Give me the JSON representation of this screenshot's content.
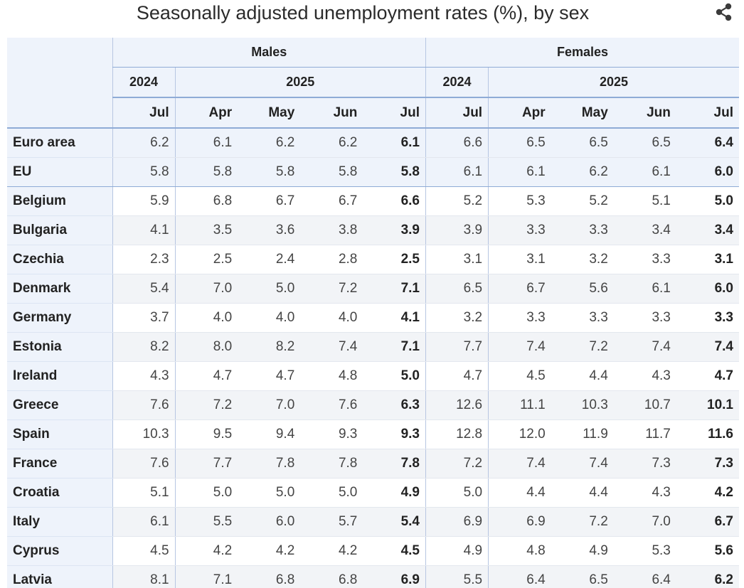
{
  "title": "Seasonally adjusted unemployment rates (%), by sex",
  "share_icon": "share-icon",
  "colors": {
    "header_bg": "#eef3fb",
    "border_accent": "#8fabd6",
    "alt_row_bg": "#f2f4f7"
  },
  "chart_data": {
    "type": "table",
    "title": "Seasonally adjusted unemployment rates (%), by sex",
    "groups": [
      {
        "name": "Males",
        "years": [
          {
            "year": "2024",
            "months": [
              "Jul"
            ]
          },
          {
            "year": "2025",
            "months": [
              "Apr",
              "May",
              "Jun",
              "Jul"
            ]
          }
        ]
      },
      {
        "name": "Females",
        "years": [
          {
            "year": "2024",
            "months": [
              "Jul"
            ]
          },
          {
            "year": "2025",
            "months": [
              "Apr",
              "May",
              "Jun",
              "Jul"
            ]
          }
        ]
      }
    ],
    "rows": [
      {
        "label": "Euro area",
        "values": [
          "6.2",
          "6.1",
          "6.2",
          "6.2",
          "6.1",
          "6.6",
          "6.5",
          "6.5",
          "6.5",
          "6.4"
        ]
      },
      {
        "label": "EU",
        "values": [
          "5.8",
          "5.8",
          "5.8",
          "5.8",
          "5.8",
          "6.1",
          "6.1",
          "6.2",
          "6.1",
          "6.0"
        ]
      },
      {
        "label": "Belgium",
        "values": [
          "5.9",
          "6.8",
          "6.7",
          "6.7",
          "6.6",
          "5.2",
          "5.3",
          "5.2",
          "5.1",
          "5.0"
        ]
      },
      {
        "label": "Bulgaria",
        "values": [
          "4.1",
          "3.5",
          "3.6",
          "3.8",
          "3.9",
          "3.9",
          "3.3",
          "3.3",
          "3.4",
          "3.4"
        ]
      },
      {
        "label": "Czechia",
        "values": [
          "2.3",
          "2.5",
          "2.4",
          "2.8",
          "2.5",
          "3.1",
          "3.1",
          "3.2",
          "3.3",
          "3.1"
        ]
      },
      {
        "label": "Denmark",
        "values": [
          "5.4",
          "7.0",
          "5.0",
          "7.2",
          "7.1",
          "6.5",
          "6.7",
          "5.6",
          "6.1",
          "6.0"
        ]
      },
      {
        "label": "Germany",
        "values": [
          "3.7",
          "4.0",
          "4.0",
          "4.0",
          "4.1",
          "3.2",
          "3.3",
          "3.3",
          "3.3",
          "3.3"
        ]
      },
      {
        "label": "Estonia",
        "values": [
          "8.2",
          "8.0",
          "8.2",
          "7.4",
          "7.1",
          "7.7",
          "7.4",
          "7.2",
          "7.4",
          "7.4"
        ]
      },
      {
        "label": "Ireland",
        "values": [
          "4.3",
          "4.7",
          "4.7",
          "4.8",
          "5.0",
          "4.7",
          "4.5",
          "4.4",
          "4.3",
          "4.7"
        ]
      },
      {
        "label": "Greece",
        "values": [
          "7.6",
          "7.2",
          "7.0",
          "7.6",
          "6.3",
          "12.6",
          "11.1",
          "10.3",
          "10.7",
          "10.1"
        ]
      },
      {
        "label": "Spain",
        "values": [
          "10.3",
          "9.5",
          "9.4",
          "9.3",
          "9.3",
          "12.8",
          "12.0",
          "11.9",
          "11.7",
          "11.6"
        ]
      },
      {
        "label": "France",
        "values": [
          "7.6",
          "7.7",
          "7.8",
          "7.8",
          "7.8",
          "7.2",
          "7.4",
          "7.4",
          "7.3",
          "7.3"
        ]
      },
      {
        "label": "Croatia",
        "values": [
          "5.1",
          "5.0",
          "5.0",
          "5.0",
          "4.9",
          "5.0",
          "4.4",
          "4.4",
          "4.3",
          "4.2"
        ]
      },
      {
        "label": "Italy",
        "values": [
          "6.1",
          "5.5",
          "6.0",
          "5.7",
          "5.4",
          "6.9",
          "6.9",
          "7.2",
          "7.0",
          "6.7"
        ]
      },
      {
        "label": "Cyprus",
        "values": [
          "4.5",
          "4.2",
          "4.2",
          "4.2",
          "4.5",
          "4.9",
          "4.8",
          "4.9",
          "5.3",
          "5.6"
        ]
      },
      {
        "label": "Latvia",
        "values": [
          "8.1",
          "7.1",
          "6.8",
          "6.8",
          "6.9",
          "5.5",
          "6.4",
          "6.5",
          "6.4",
          "6.2"
        ]
      }
    ]
  }
}
